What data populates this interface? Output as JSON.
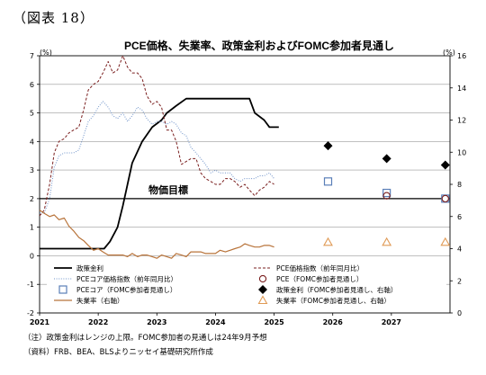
{
  "figure_label": "（図表 18）",
  "notes": [
    "（注）政策金利はレンジの上限。FOMC参加者の見通しは24年9月予想",
    "（資料）FRB、BEA、BLSよりニッセイ基礎研究所作成"
  ],
  "colors": {
    "policy_rate": "#000000",
    "pce": "#7a1f1f",
    "core_pce": "#6f93c9",
    "core_pce_fomc": "#5a7fb8",
    "policy_fomc": "#000000",
    "unemployment": "#b8733a",
    "unemployment_fomc": "#e09a55",
    "target_line": "#000000"
  },
  "chart_data": {
    "type": "line",
    "title": "PCE価格、失業率、政策金利およびFOMC参加者見通し",
    "left_axis": {
      "unit": "(%)",
      "min": -2,
      "max": 7,
      "ticks": [
        -2,
        -1,
        0,
        1,
        2,
        3,
        4,
        5,
        6,
        7
      ]
    },
    "right_axis": {
      "unit": "(%)",
      "min": 0,
      "max": 16,
      "ticks": [
        0,
        2,
        4,
        6,
        8,
        10,
        12,
        14,
        16
      ]
    },
    "x_axis": {
      "min": 2021.0,
      "max": 2028.0,
      "tick_labels": [
        "2021",
        "2022",
        "2023",
        "2024",
        "2025",
        "2026",
        "2027"
      ]
    },
    "grid": "horizontal",
    "target_line": {
      "label": "物価目標",
      "value": 2.0
    },
    "series": [
      {
        "name": "政策金利",
        "axis": "left",
        "style": "solid",
        "points": [
          [
            2021.0,
            0.25
          ],
          [
            2022.1,
            0.25
          ],
          [
            2022.2,
            0.5
          ],
          [
            2022.33,
            1.0
          ],
          [
            2022.42,
            1.75
          ],
          [
            2022.5,
            2.5
          ],
          [
            2022.58,
            3.25
          ],
          [
            2022.75,
            4.0
          ],
          [
            2022.92,
            4.5
          ],
          [
            2023.08,
            4.75
          ],
          [
            2023.17,
            5.0
          ],
          [
            2023.33,
            5.25
          ],
          [
            2023.5,
            5.5
          ],
          [
            2024.58,
            5.5
          ],
          [
            2024.67,
            5.0
          ],
          [
            2024.83,
            4.75
          ],
          [
            2024.92,
            4.5
          ],
          [
            2025.08,
            4.5
          ]
        ]
      },
      {
        "name": "PCE価格指数（前年同月比）",
        "axis": "left",
        "style": "dashed",
        "points": [
          [
            2021.0,
            1.4
          ],
          [
            2021.08,
            1.6
          ],
          [
            2021.17,
            2.5
          ],
          [
            2021.25,
            3.6
          ],
          [
            2021.33,
            4.0
          ],
          [
            2021.42,
            4.1
          ],
          [
            2021.5,
            4.3
          ],
          [
            2021.58,
            4.4
          ],
          [
            2021.67,
            4.5
          ],
          [
            2021.75,
            5.1
          ],
          [
            2021.83,
            5.8
          ],
          [
            2021.92,
            6.0
          ],
          [
            2022.0,
            6.1
          ],
          [
            2022.08,
            6.4
          ],
          [
            2022.17,
            6.8
          ],
          [
            2022.25,
            6.4
          ],
          [
            2022.33,
            6.5
          ],
          [
            2022.42,
            7.0
          ],
          [
            2022.5,
            6.6
          ],
          [
            2022.58,
            6.4
          ],
          [
            2022.67,
            6.4
          ],
          [
            2022.75,
            6.2
          ],
          [
            2022.83,
            5.6
          ],
          [
            2022.92,
            5.3
          ],
          [
            2023.0,
            5.4
          ],
          [
            2023.08,
            5.2
          ],
          [
            2023.17,
            4.4
          ],
          [
            2023.25,
            4.4
          ],
          [
            2023.33,
            4.0
          ],
          [
            2023.42,
            3.2
          ],
          [
            2023.5,
            3.3
          ],
          [
            2023.58,
            3.4
          ],
          [
            2023.67,
            3.4
          ],
          [
            2023.75,
            2.9
          ],
          [
            2023.83,
            2.7
          ],
          [
            2023.92,
            2.6
          ],
          [
            2024.0,
            2.5
          ],
          [
            2024.08,
            2.5
          ],
          [
            2024.17,
            2.7
          ],
          [
            2024.25,
            2.7
          ],
          [
            2024.33,
            2.6
          ],
          [
            2024.42,
            2.4
          ],
          [
            2024.5,
            2.5
          ],
          [
            2024.58,
            2.3
          ],
          [
            2024.67,
            2.1
          ],
          [
            2024.75,
            2.3
          ],
          [
            2024.83,
            2.4
          ],
          [
            2024.92,
            2.6
          ],
          [
            2025.0,
            2.5
          ]
        ]
      },
      {
        "name": "PCEコア価格指数（前年同月比）",
        "axis": "left",
        "style": "dotted",
        "points": [
          [
            2021.0,
            1.5
          ],
          [
            2021.08,
            1.5
          ],
          [
            2021.17,
            2.0
          ],
          [
            2021.25,
            3.1
          ],
          [
            2021.33,
            3.5
          ],
          [
            2021.42,
            3.6
          ],
          [
            2021.5,
            3.6
          ],
          [
            2021.58,
            3.6
          ],
          [
            2021.67,
            3.7
          ],
          [
            2021.75,
            4.2
          ],
          [
            2021.83,
            4.7
          ],
          [
            2021.92,
            4.9
          ],
          [
            2022.0,
            5.2
          ],
          [
            2022.08,
            5.4
          ],
          [
            2022.17,
            5.2
          ],
          [
            2022.25,
            4.9
          ],
          [
            2022.33,
            4.8
          ],
          [
            2022.42,
            5.0
          ],
          [
            2022.5,
            4.7
          ],
          [
            2022.58,
            4.9
          ],
          [
            2022.67,
            5.2
          ],
          [
            2022.75,
            5.1
          ],
          [
            2022.83,
            4.8
          ],
          [
            2022.92,
            4.6
          ],
          [
            2023.0,
            4.7
          ],
          [
            2023.08,
            4.7
          ],
          [
            2023.17,
            4.6
          ],
          [
            2023.25,
            4.7
          ],
          [
            2023.33,
            4.6
          ],
          [
            2023.42,
            4.3
          ],
          [
            2023.5,
            4.2
          ],
          [
            2023.58,
            3.8
          ],
          [
            2023.67,
            3.6
          ],
          [
            2023.75,
            3.4
          ],
          [
            2023.83,
            3.2
          ],
          [
            2023.92,
            2.9
          ],
          [
            2024.0,
            3.0
          ],
          [
            2024.08,
            2.9
          ],
          [
            2024.17,
            2.9
          ],
          [
            2024.25,
            2.9
          ],
          [
            2024.33,
            2.7
          ],
          [
            2024.42,
            2.6
          ],
          [
            2024.5,
            2.7
          ],
          [
            2024.58,
            2.7
          ],
          [
            2024.67,
            2.7
          ],
          [
            2024.75,
            2.8
          ],
          [
            2024.83,
            2.8
          ],
          [
            2024.92,
            2.9
          ],
          [
            2025.0,
            2.7
          ]
        ]
      },
      {
        "name": "失業率（右軸）",
        "axis": "right",
        "style": "solid",
        "points": [
          [
            2021.0,
            6.4
          ],
          [
            2021.08,
            6.2
          ],
          [
            2021.17,
            6.0
          ],
          [
            2021.25,
            6.1
          ],
          [
            2021.33,
            5.8
          ],
          [
            2021.42,
            5.9
          ],
          [
            2021.5,
            5.4
          ],
          [
            2021.58,
            5.1
          ],
          [
            2021.67,
            4.7
          ],
          [
            2021.75,
            4.5
          ],
          [
            2021.83,
            4.2
          ],
          [
            2021.92,
            3.9
          ],
          [
            2022.0,
            4.0
          ],
          [
            2022.08,
            3.8
          ],
          [
            2022.17,
            3.6
          ],
          [
            2022.25,
            3.6
          ],
          [
            2022.33,
            3.6
          ],
          [
            2022.42,
            3.6
          ],
          [
            2022.5,
            3.5
          ],
          [
            2022.58,
            3.7
          ],
          [
            2022.67,
            3.5
          ],
          [
            2022.75,
            3.6
          ],
          [
            2022.83,
            3.6
          ],
          [
            2022.92,
            3.5
          ],
          [
            2023.0,
            3.4
          ],
          [
            2023.08,
            3.6
          ],
          [
            2023.17,
            3.5
          ],
          [
            2023.25,
            3.4
          ],
          [
            2023.33,
            3.7
          ],
          [
            2023.42,
            3.6
          ],
          [
            2023.5,
            3.5
          ],
          [
            2023.58,
            3.8
          ],
          [
            2023.67,
            3.8
          ],
          [
            2023.75,
            3.8
          ],
          [
            2023.83,
            3.7
          ],
          [
            2023.92,
            3.7
          ],
          [
            2024.0,
            3.7
          ],
          [
            2024.08,
            3.9
          ],
          [
            2024.17,
            3.8
          ],
          [
            2024.25,
            3.9
          ],
          [
            2024.33,
            4.0
          ],
          [
            2024.42,
            4.1
          ],
          [
            2024.5,
            4.3
          ],
          [
            2024.58,
            4.2
          ],
          [
            2024.67,
            4.1
          ],
          [
            2024.75,
            4.1
          ],
          [
            2024.83,
            4.2
          ],
          [
            2024.92,
            4.2
          ],
          [
            2025.0,
            4.1
          ]
        ]
      }
    ],
    "fomc_projections": [
      {
        "name": "PCEコア（FOMC参加者見通し）",
        "axis": "left",
        "marker": "open-square",
        "points": [
          [
            2025.92,
            2.6
          ],
          [
            2026.92,
            2.2
          ],
          [
            2027.92,
            2.0
          ]
        ]
      },
      {
        "name": "PCE（FOMC参加者見通し）",
        "axis": "left",
        "marker": "open-circle",
        "points": [
          [
            2026.92,
            2.1
          ],
          [
            2027.92,
            2.0
          ]
        ]
      },
      {
        "name": "政策金利（FOMC参加者見通し、右軸）",
        "axis": "right",
        "marker": "filled-diamond",
        "points": [
          [
            2025.92,
            10.4
          ],
          [
            2026.92,
            9.6
          ],
          [
            2027.92,
            9.2
          ]
        ]
      },
      {
        "name": "失業率（FOMC参加者見通し、右軸）",
        "axis": "right",
        "marker": "open-triangle",
        "points": [
          [
            2025.92,
            4.4
          ],
          [
            2026.92,
            4.4
          ],
          [
            2027.92,
            4.4
          ]
        ]
      }
    ]
  }
}
